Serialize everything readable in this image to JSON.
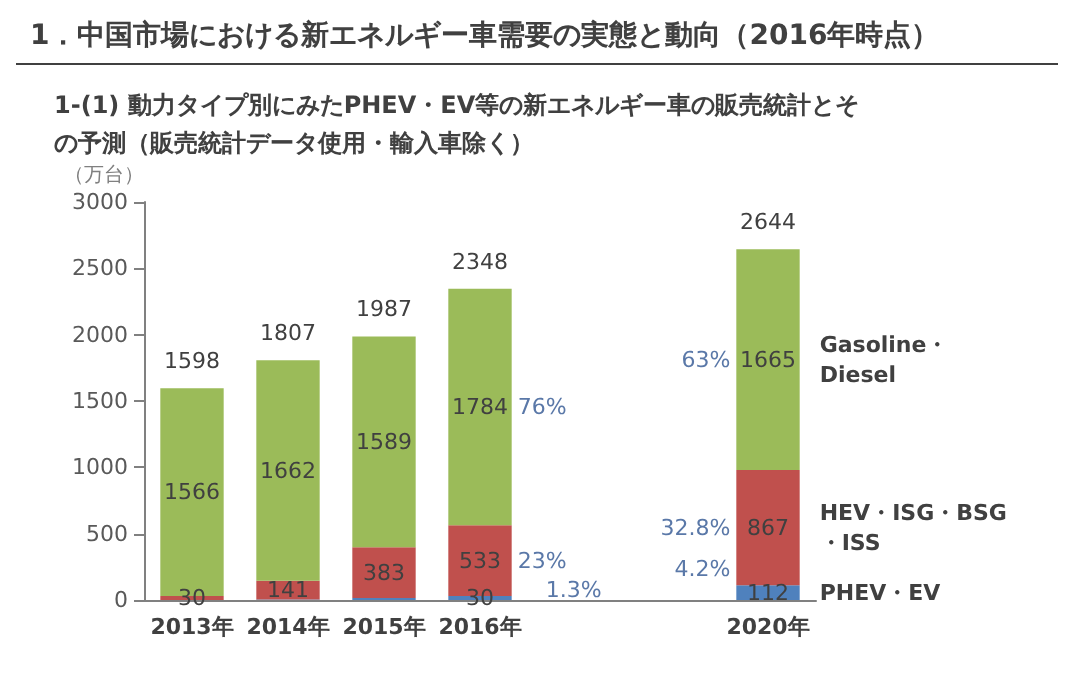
{
  "chart_data": {
    "type": "bar",
    "stacked": true,
    "title": "1．中国市場における新エネルギー車需要の実態と動向（2016年時点）",
    "subtitle": "1-(1) 動力タイプ別にみたPHEV・EV等の新エネルギー車の販売統計とその予測（販売統計データ使用・輸入車除く）",
    "ylabel": "（万台）",
    "categories": [
      "2013年",
      "2014年",
      "2015年",
      "2016年",
      null,
      null,
      "2020年"
    ],
    "series": [
      {
        "name": "PHEV・EV",
        "color": "#4f81bd",
        "values": [
          null,
          4,
          15,
          30,
          null,
          null,
          112
        ],
        "value_labels": [
          null,
          null,
          null,
          "30",
          null,
          null,
          "112"
        ]
      },
      {
        "name": "HEV・ISG・BSG・ISS",
        "color": "#c0504d",
        "values": [
          30,
          141,
          383,
          533,
          null,
          null,
          867
        ],
        "value_labels": [
          "30",
          "141",
          "383",
          "533",
          null,
          null,
          "867"
        ]
      },
      {
        "name": "Gasoline・Diesel",
        "color": "#9bbb59",
        "values": [
          1566,
          1662,
          1589,
          1784,
          null,
          null,
          1665
        ],
        "value_labels": [
          "1566",
          "1662",
          "1589",
          "1784",
          null,
          null,
          "1665"
        ]
      }
    ],
    "totals": [
      "1598",
      "1807",
      "1987",
      "2348",
      null,
      null,
      "2644"
    ],
    "ylim": [
      0,
      3000
    ],
    "yticks": [
      0,
      500,
      1000,
      1500,
      2000,
      2500,
      3000
    ],
    "grid": false,
    "annotations": [
      "76%",
      "23%",
      "1.3%",
      "63%",
      "32.8%",
      "4.2%"
    ]
  }
}
